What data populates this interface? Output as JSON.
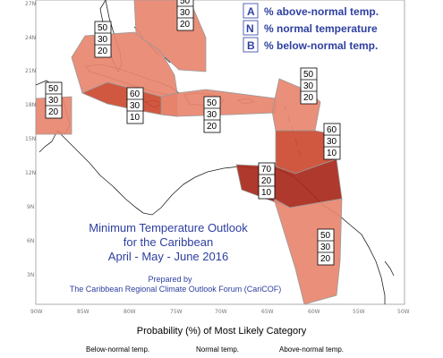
{
  "map": {
    "title_lines": [
      "Minimum Temperature Outlook",
      "for the Caribbean",
      "April - May - June 2016"
    ],
    "credit_lines": [
      "Prepared by",
      "The Caribbean Regional Climate Outlook Forum (CariCOF)"
    ],
    "lat_ticks": [
      "27N",
      "24N",
      "21N",
      "18N",
      "15N",
      "12N",
      "9N",
      "6N",
      "3N"
    ],
    "lon_ticks": [
      "90W",
      "85W",
      "80W",
      "75W",
      "70W",
      "65W",
      "60W",
      "55W",
      "50W"
    ],
    "legend_key": [
      {
        "letter": "A",
        "desc": "% above-normal temp."
      },
      {
        "letter": "N",
        "desc": "% normal temperature"
      },
      {
        "letter": "B",
        "desc": "% below-normal temp."
      }
    ],
    "regions": [
      {
        "id": "bahamas",
        "color": "#e8866f",
        "probabilities": {
          "above": "50",
          "normal": "30",
          "below": "20"
        }
      },
      {
        "id": "cuba-hispaniola-band",
        "color": "#e8866f",
        "probabilities": {
          "above": "50",
          "normal": "30",
          "below": "20"
        }
      },
      {
        "id": "jamaica-cayman",
        "color": "#cc4a30",
        "probabilities": {
          "above": "60",
          "normal": "30",
          "below": "10"
        }
      },
      {
        "id": "belize",
        "color": "#e8866f",
        "probabilities": {
          "above": "50",
          "normal": "30",
          "below": "20"
        }
      },
      {
        "id": "puerto-rico-band",
        "color": "#e8866f",
        "probabilities": {
          "above": "50",
          "normal": "30",
          "below": "20"
        }
      },
      {
        "id": "leeward-islands",
        "color": "#e8866f",
        "probabilities": {
          "above": "50",
          "normal": "30",
          "below": "20"
        }
      },
      {
        "id": "windward-islands",
        "color": "#cc4a30",
        "probabilities": {
          "above": "60",
          "normal": "30",
          "below": "10"
        }
      },
      {
        "id": "abc-trinidad",
        "color": "#a8281a",
        "probabilities": {
          "above": "70",
          "normal": "20",
          "below": "10"
        }
      },
      {
        "id": "guianas",
        "color": "#e8866f",
        "probabilities": {
          "above": "50",
          "normal": "30",
          "below": "20"
        }
      }
    ]
  },
  "legend": {
    "title": "Probability (%) of Most Likely Category",
    "labels": [
      "Below-normal temp.",
      "Normal temp.",
      "Above-normal temp."
    ]
  }
}
